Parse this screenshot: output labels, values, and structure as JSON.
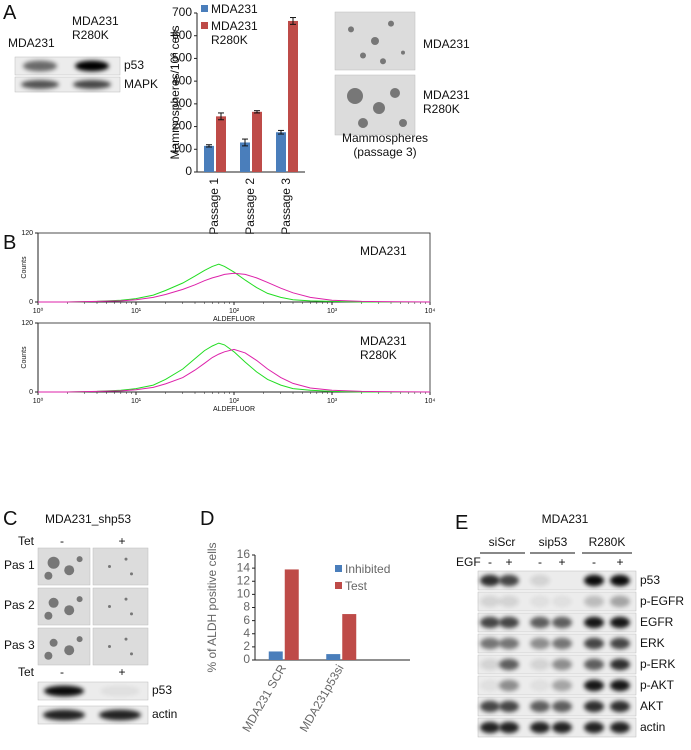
{
  "panel_labels": [
    "A",
    "B",
    "C",
    "D",
    "E"
  ],
  "panel_a": {
    "blot_columns": [
      "MDA231",
      "MDA231 R280K"
    ],
    "blot_rows": [
      "p53",
      "MAPK"
    ],
    "image_labels": [
      "MDA231",
      "MDA231 R280K"
    ],
    "image_caption": "Mammospheres (passage 3)"
  },
  "panel_b": {
    "sample_labels": [
      "MDA231",
      "MDA231 R280K"
    ]
  },
  "panel_c": {
    "title": "MDA231_shp53",
    "treatment": "Tet",
    "conditions": [
      "-",
      "+"
    ],
    "rows": [
      "Pas 1",
      "Pas 2",
      "Pas 3"
    ],
    "blot_rows": [
      "p53",
      "actin"
    ]
  },
  "panel_e": {
    "title": "MDA231",
    "groups": [
      "siScr",
      "sip53",
      "R280K"
    ],
    "treatment": "EGF",
    "conditions": [
      "-",
      "+",
      "-",
      "+",
      "-",
      "+"
    ],
    "blot_rows": [
      "p53",
      "p-EGFR",
      "EGFR",
      "ERK",
      "p-ERK",
      "p-AKT",
      "AKT",
      "actin"
    ]
  },
  "chart_data": [
    {
      "type": "bar",
      "ylabel": "Mammospheres/10³ cells",
      "categories": [
        "Passage 1",
        "Passage 2",
        "Passage 3"
      ],
      "series": [
        {
          "name": "MDA231",
          "color": "#4a7ebb",
          "values": [
            115,
            130,
            175
          ],
          "errors": [
            5,
            15,
            8
          ]
        },
        {
          "name": "MDA231 R280K",
          "color": "#be4b48",
          "values": [
            245,
            265,
            665
          ],
          "errors": [
            15,
            5,
            15
          ]
        }
      ],
      "ylim": [
        0,
        700
      ],
      "yticks": [
        0,
        100,
        200,
        300,
        400,
        500,
        600,
        700
      ],
      "legend": "top-left"
    },
    {
      "type": "line",
      "xlabel": "ALDEFLUOR",
      "ylabel": "Counts",
      "xlog": true,
      "xlim": [
        1,
        10000
      ],
      "xticks": [
        {
          "value": 1,
          "label": "10⁰"
        },
        {
          "value": 10,
          "label": "10¹"
        },
        {
          "value": 100,
          "label": "10²"
        },
        {
          "value": 1000,
          "label": "10³"
        },
        {
          "value": 10000,
          "label": "10⁴"
        }
      ],
      "ylim": [
        0,
        120
      ],
      "yticks": [
        0,
        120
      ],
      "x": [
        1,
        2,
        4,
        7,
        10,
        15,
        20,
        30,
        40,
        50,
        60,
        70,
        80,
        100,
        130,
        170,
        220,
        300,
        400,
        600,
        1000,
        2000,
        10000
      ],
      "series": [
        {
          "color": "#22dd22",
          "values": [
            0,
            0,
            1,
            3,
            6,
            12,
            20,
            33,
            45,
            55,
            62,
            66,
            62,
            52,
            38,
            25,
            15,
            8,
            4,
            2,
            1,
            0,
            0
          ]
        },
        {
          "color": "#dd22aa",
          "values": [
            0,
            0,
            1,
            2,
            4,
            8,
            13,
            22,
            30,
            37,
            42,
            45,
            48,
            50,
            48,
            42,
            34,
            24,
            16,
            8,
            3,
            1,
            0
          ]
        }
      ]
    },
    {
      "type": "line",
      "xlabel": "ALDEFLUOR",
      "ylabel": "Counts",
      "xlog": true,
      "xlim": [
        1,
        10000
      ],
      "xticks": [
        {
          "value": 1,
          "label": "10⁰"
        },
        {
          "value": 10,
          "label": "10¹"
        },
        {
          "value": 100,
          "label": "10²"
        },
        {
          "value": 1000,
          "label": "10³"
        },
        {
          "value": 10000,
          "label": "10⁴"
        }
      ],
      "ylim": [
        0,
        120
      ],
      "yticks": [
        0,
        120
      ],
      "x": [
        1,
        2,
        4,
        7,
        10,
        15,
        20,
        30,
        40,
        50,
        60,
        70,
        80,
        100,
        130,
        170,
        220,
        300,
        400,
        600,
        1000,
        2000,
        10000
      ],
      "series": [
        {
          "color": "#22dd22",
          "values": [
            0,
            0,
            1,
            3,
            6,
            12,
            22,
            40,
            58,
            72,
            80,
            85,
            82,
            70,
            52,
            35,
            22,
            12,
            6,
            3,
            1,
            0,
            0
          ]
        },
        {
          "color": "#dd22aa",
          "values": [
            0,
            0,
            1,
            2,
            4,
            8,
            14,
            25,
            38,
            50,
            60,
            66,
            70,
            74,
            68,
            55,
            40,
            25,
            15,
            7,
            3,
            1,
            0
          ]
        }
      ]
    },
    {
      "type": "bar",
      "ylabel": "% of ALDH positive cells",
      "categories": [
        "MDA231 SCR",
        "MDA231p53si"
      ],
      "series": [
        {
          "name": "Inhibited",
          "color": "#4a7ebb",
          "values": [
            1.3,
            0.9
          ]
        },
        {
          "name": "Test",
          "color": "#be4b48",
          "values": [
            13.8,
            7.0
          ]
        }
      ],
      "ylim": [
        0,
        16
      ],
      "yticks": [
        0,
        2,
        4,
        6,
        8,
        10,
        12,
        14,
        16
      ],
      "legend": "top-right"
    }
  ]
}
